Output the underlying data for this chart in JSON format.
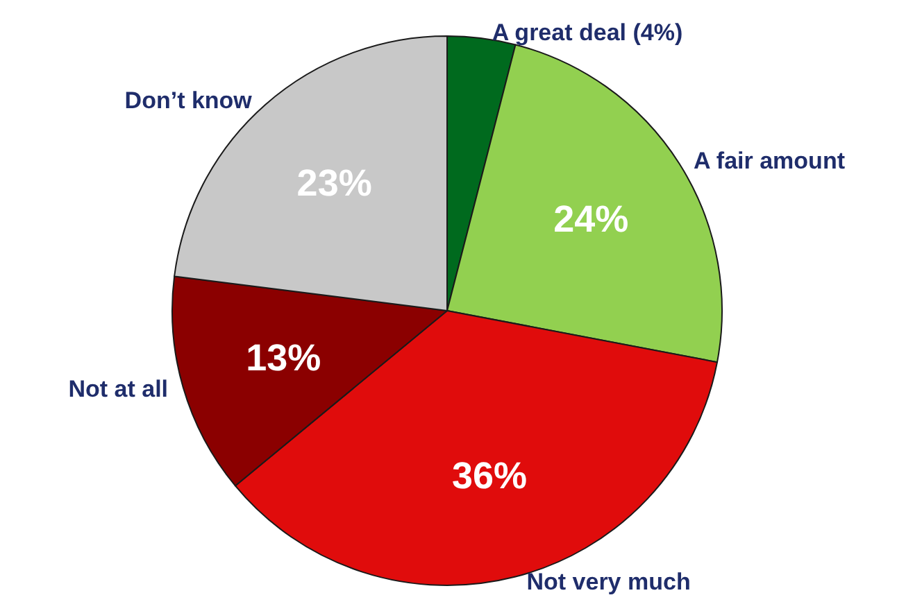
{
  "chart_data": {
    "type": "pie",
    "categories": [
      "A great deal (4%)",
      "A fair amount",
      "Not very much",
      "Not at all",
      "Don’t know"
    ],
    "values": [
      4,
      24,
      36,
      13,
      23
    ],
    "colors": [
      "#006a1e",
      "#92d050",
      "#e00c0c",
      "#8b0000",
      "#c8c8c8"
    ],
    "value_labels": [
      null,
      "24%",
      "36%",
      "13%",
      "23%"
    ],
    "legend": false
  }
}
